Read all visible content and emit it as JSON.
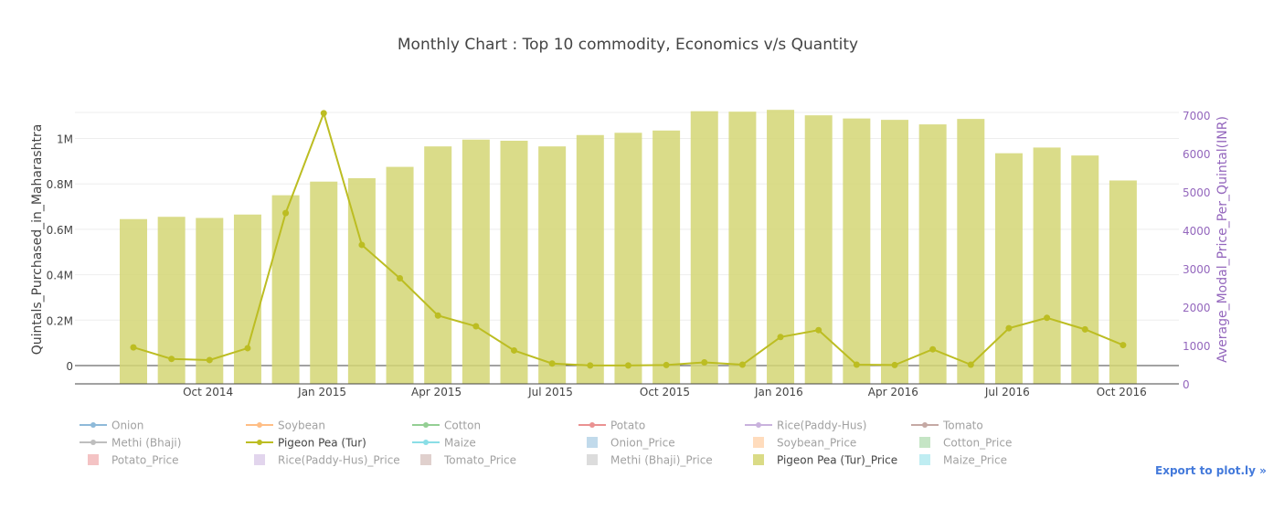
{
  "chart_data": {
    "type": "bar",
    "title": "Monthly Chart : Top 10 commodity, Economics v/s Quantity",
    "ylabel": "Quintals_Purchased_in_Maharashtra",
    "y2label": "Average_Modal_Price_Per_Quintal(INR)",
    "ylim": [
      -0.07,
      1.1
    ],
    "y2lim": [
      0,
      7000
    ],
    "yticks": [
      0,
      0.2,
      0.4,
      0.6,
      0.8,
      1.0
    ],
    "ytick_labels": [
      "0",
      "0.2M",
      "0.4M",
      "0.6M",
      "0.8M",
      "1M"
    ],
    "y2ticks": [
      0,
      1000,
      2000,
      3000,
      4000,
      5000,
      6000,
      7000
    ],
    "y2tick_labels": [
      "0",
      "1000",
      "2000",
      "3000",
      "4000",
      "5000",
      "6000",
      "7000"
    ],
    "x": [
      "2014-09",
      "2014-10",
      "2014-11",
      "2014-12",
      "2015-01",
      "2015-02",
      "2015-03",
      "2015-04",
      "2015-05",
      "2015-06",
      "2015-07",
      "2015-08",
      "2015-09",
      "2015-10",
      "2015-11",
      "2015-12",
      "2016-01",
      "2016-02",
      "2016-03",
      "2016-04",
      "2016-05",
      "2016-06",
      "2016-07",
      "2016-08",
      "2016-09",
      "2016-10",
      "2016-11"
    ],
    "xtick_values": [
      "2014-10",
      "2015-01",
      "2015-04",
      "2015-07",
      "2015-10",
      "2016-01",
      "2016-04",
      "2016-07",
      "2016-10"
    ],
    "xtick_labels": [
      "Oct 2014",
      "Jan 2015",
      "Apr 2015",
      "Jul 2015",
      "Oct 2015",
      "Jan 2016",
      "Apr 2016",
      "Jul 2016",
      "Oct 2016"
    ],
    "series": [
      {
        "name": "Pigeon Pea (Tur)_Price",
        "type": "bar",
        "axis": "y",
        "color": "#d4d674",
        "values": [
          0.645,
          0.655,
          0.65,
          0.665,
          0.75,
          0.81,
          0.825,
          0.875,
          0.965,
          0.995,
          0.99,
          0.965,
          1.015,
          1.025,
          1.035,
          1.12,
          1.118,
          1.126,
          1.102,
          1.088,
          1.082,
          1.062,
          1.086,
          0.935,
          0.96,
          0.925,
          0.815
        ]
      },
      {
        "name": "Pigeon Pea (Tur)",
        "type": "line",
        "axis": "y2",
        "color": "#bcbd22",
        "values": [
          950,
          650,
          620,
          930,
          4450,
          7050,
          3620,
          2750,
          1780,
          1500,
          870,
          530,
          480,
          480,
          490,
          560,
          500,
          1220,
          1400,
          500,
          490,
          900,
          500,
          1450,
          1720,
          1420,
          1010
        ]
      }
    ],
    "legend": {
      "placement": "bottom",
      "entries": [
        {
          "label": "Onion",
          "kind": "line",
          "color": "#1f77b4",
          "active": false
        },
        {
          "label": "Soybean",
          "kind": "line",
          "color": "#ff7f0e",
          "active": false
        },
        {
          "label": "Cotton",
          "kind": "line",
          "color": "#2ca02c",
          "active": false
        },
        {
          "label": "Potato",
          "kind": "line",
          "color": "#d62728",
          "active": false
        },
        {
          "label": "Rice(Paddy-Hus)",
          "kind": "line",
          "color": "#9467bd",
          "active": false
        },
        {
          "label": "Tomato",
          "kind": "line",
          "color": "#8c564b",
          "active": false
        },
        {
          "label": "Methi (Bhaji)",
          "kind": "line",
          "color": "#7f7f7f",
          "active": false
        },
        {
          "label": "Pigeon Pea (Tur)",
          "kind": "line",
          "color": "#bcbd22",
          "active": true
        },
        {
          "label": "Maize",
          "kind": "line",
          "color": "#17becf",
          "active": false
        },
        {
          "label": "Onion_Price",
          "kind": "bar",
          "color": "#1f77b4",
          "active": false
        },
        {
          "label": "Soybean_Price",
          "kind": "bar",
          "color": "#ff7f0e",
          "active": false
        },
        {
          "label": "Cotton_Price",
          "kind": "bar",
          "color": "#2ca02c",
          "active": false
        },
        {
          "label": "Potato_Price",
          "kind": "bar",
          "color": "#d62728",
          "active": false
        },
        {
          "label": "Rice(Paddy-Hus)_Price",
          "kind": "bar",
          "color": "#9467bd",
          "active": false
        },
        {
          "label": "Tomato_Price",
          "kind": "bar",
          "color": "#8c564b",
          "active": false
        },
        {
          "label": "Methi (Bhaji)_Price",
          "kind": "bar",
          "color": "#7f7f7f",
          "active": false
        },
        {
          "label": "Pigeon Pea (Tur)_Price",
          "kind": "bar",
          "color": "#bcbd22",
          "active": true
        },
        {
          "label": "Maize_Price",
          "kind": "bar",
          "color": "#17becf",
          "active": false
        }
      ]
    },
    "grid": true
  },
  "export_link": "Export to plot.ly »",
  "colors": {
    "title": "#444444",
    "axis_text": "#444444",
    "y2_axis": "#9467bd",
    "grid": "#eeeeee",
    "legend_active": "#444444",
    "legend_inactive": "#b0b0b0"
  }
}
